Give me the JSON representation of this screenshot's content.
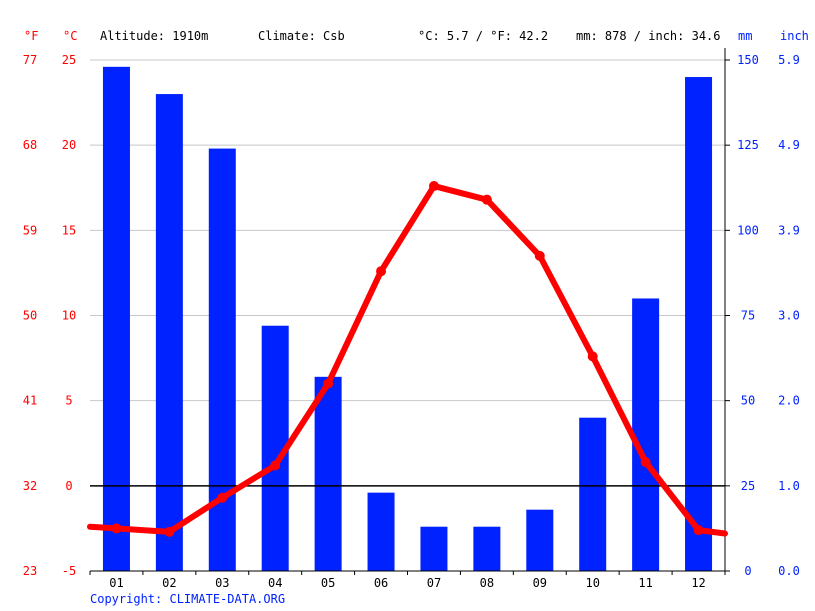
{
  "header": {
    "unit_f": "°F",
    "unit_c": "°C",
    "altitude": "Altitude: 1910m",
    "climate": "Climate: Csb",
    "temp_avg": "°C: 5.7 / °F: 42.2",
    "precip_total": "mm: 878 / inch: 34.6",
    "unit_mm": "mm",
    "unit_inch": "inch"
  },
  "footer": {
    "copyright": "Copyright: CLIMATE-DATA.ORG"
  },
  "colors": {
    "temperature": "#ff0000",
    "precipitation": "#0022ff",
    "zero_line": "#000000",
    "grid": "#c8c8c8"
  },
  "chart_data": {
    "type": "bar",
    "categories": [
      "01",
      "02",
      "03",
      "04",
      "05",
      "06",
      "07",
      "08",
      "09",
      "10",
      "11",
      "12"
    ],
    "series": [
      {
        "kind": "bar",
        "axis": "right-mm",
        "values": [
          148,
          140,
          124,
          72,
          57,
          23,
          13,
          13,
          18,
          45,
          80,
          145
        ]
      },
      {
        "kind": "line",
        "axis": "left-celsius",
        "values": [
          -2.5,
          -2.7,
          -0.7,
          1.2,
          6.0,
          12.6,
          17.6,
          16.8,
          13.5,
          7.6,
          1.4,
          -2.6
        ]
      }
    ],
    "axes": {
      "celsius": {
        "ticks": [
          "25",
          "20",
          "15",
          "10",
          "5",
          "0",
          "-5"
        ],
        "range": [
          -5,
          25
        ]
      },
      "fahrenheit": {
        "ticks": [
          "77",
          "68",
          "59",
          "50",
          "41",
          "32",
          "23"
        ],
        "range": [
          23,
          77
        ]
      },
      "mm": {
        "ticks": [
          "150",
          "125",
          "100",
          "75",
          "50",
          "25",
          "0"
        ],
        "range": [
          0,
          150
        ]
      },
      "inch": {
        "ticks": [
          "5.9",
          "4.9",
          "3.9",
          "3.0",
          "2.0",
          "1.0",
          "0.0"
        ],
        "range": [
          0,
          5.9
        ]
      }
    },
    "grid": true,
    "legend": "none"
  }
}
